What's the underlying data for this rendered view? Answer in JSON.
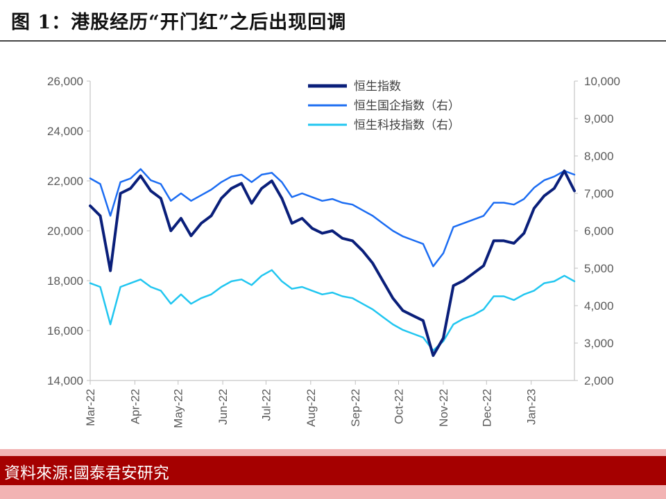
{
  "title": "图 1：港股经历“开门红”之后出现回调",
  "source": "資料來源:國泰君安研究",
  "chart_data": {
    "type": "line",
    "x": [
      "2022-03-01",
      "2022-03-08",
      "2022-03-15",
      "2022-03-22",
      "2022-03-29",
      "2022-04-05",
      "2022-04-12",
      "2022-04-19",
      "2022-04-26",
      "2022-05-03",
      "2022-05-10",
      "2022-05-17",
      "2022-05-24",
      "2022-05-31",
      "2022-06-07",
      "2022-06-14",
      "2022-06-21",
      "2022-06-28",
      "2022-07-05",
      "2022-07-12",
      "2022-07-19",
      "2022-07-26",
      "2022-08-02",
      "2022-08-09",
      "2022-08-16",
      "2022-08-23",
      "2022-08-30",
      "2022-09-06",
      "2022-09-13",
      "2022-09-20",
      "2022-09-27",
      "2022-10-04",
      "2022-10-11",
      "2022-10-18",
      "2022-10-25",
      "2022-11-01",
      "2022-11-08",
      "2022-11-15",
      "2022-11-22",
      "2022-11-29",
      "2022-12-06",
      "2022-12-13",
      "2022-12-20",
      "2022-12-27",
      "2023-01-03",
      "2023-01-10",
      "2023-01-17",
      "2023-01-24",
      "2023-01-31"
    ],
    "x_tick_labels": [
      "Mar-22",
      "Apr-22",
      "May-22",
      "Jun-22",
      "Jul-22",
      "Aug-22",
      "Sep-22",
      "Oct-22",
      "Nov-22",
      "Dec-22",
      "Jan-23"
    ],
    "y_left": {
      "min": 14000,
      "max": 26000,
      "ticks": [
        "14,000",
        "16,000",
        "18,000",
        "20,000",
        "22,000",
        "24,000",
        "26,000"
      ]
    },
    "y_right": {
      "min": 2000,
      "max": 10000,
      "ticks": [
        "2,000",
        "3,000",
        "4,000",
        "5,000",
        "6,000",
        "7,000",
        "8,000",
        "9,000",
        "10,000"
      ]
    },
    "series": [
      {
        "name": "恒生指数",
        "axis": "left",
        "color": "#0a1f7a",
        "width": 4,
        "values": [
          21000,
          20600,
          18400,
          21500,
          21700,
          22200,
          21600,
          21300,
          20000,
          20500,
          19800,
          20300,
          20600,
          21300,
          21700,
          21900,
          21100,
          21700,
          22000,
          21300,
          20300,
          20500,
          20100,
          19900,
          20000,
          19700,
          19600,
          19200,
          18700,
          18000,
          17300,
          16800,
          16600,
          16400,
          15000,
          15700,
          17800,
          18000,
          18300,
          18600,
          19600,
          19600,
          19500,
          19900,
          20900,
          21400,
          21700,
          22400,
          21600
        ]
      },
      {
        "name": "恒生国企指数（右）",
        "axis": "right",
        "color": "#1b6cf2",
        "width": 2.5,
        "values": [
          7400,
          7250,
          6400,
          7300,
          7400,
          7650,
          7350,
          7250,
          6800,
          7000,
          6800,
          6950,
          7100,
          7300,
          7450,
          7500,
          7300,
          7500,
          7550,
          7300,
          6900,
          7000,
          6900,
          6800,
          6850,
          6750,
          6700,
          6550,
          6400,
          6200,
          6000,
          5850,
          5750,
          5650,
          5050,
          5400,
          6100,
          6200,
          6300,
          6400,
          6750,
          6750,
          6700,
          6850,
          7150,
          7350,
          7450,
          7600,
          7500
        ]
      },
      {
        "name": "恒生科技指数（右）",
        "axis": "right",
        "color": "#21c6f0",
        "width": 2.5,
        "values": [
          4600,
          4500,
          3500,
          4500,
          4600,
          4700,
          4500,
          4400,
          4050,
          4300,
          4050,
          4200,
          4300,
          4500,
          4650,
          4700,
          4550,
          4800,
          4950,
          4650,
          4450,
          4500,
          4400,
          4300,
          4350,
          4250,
          4200,
          4050,
          3900,
          3700,
          3500,
          3350,
          3250,
          3150,
          2800,
          3050,
          3500,
          3650,
          3750,
          3900,
          4250,
          4250,
          4150,
          4300,
          4400,
          4600,
          4650,
          4800,
          4650
        ]
      }
    ],
    "legend_position": "top-center",
    "grid": false
  }
}
